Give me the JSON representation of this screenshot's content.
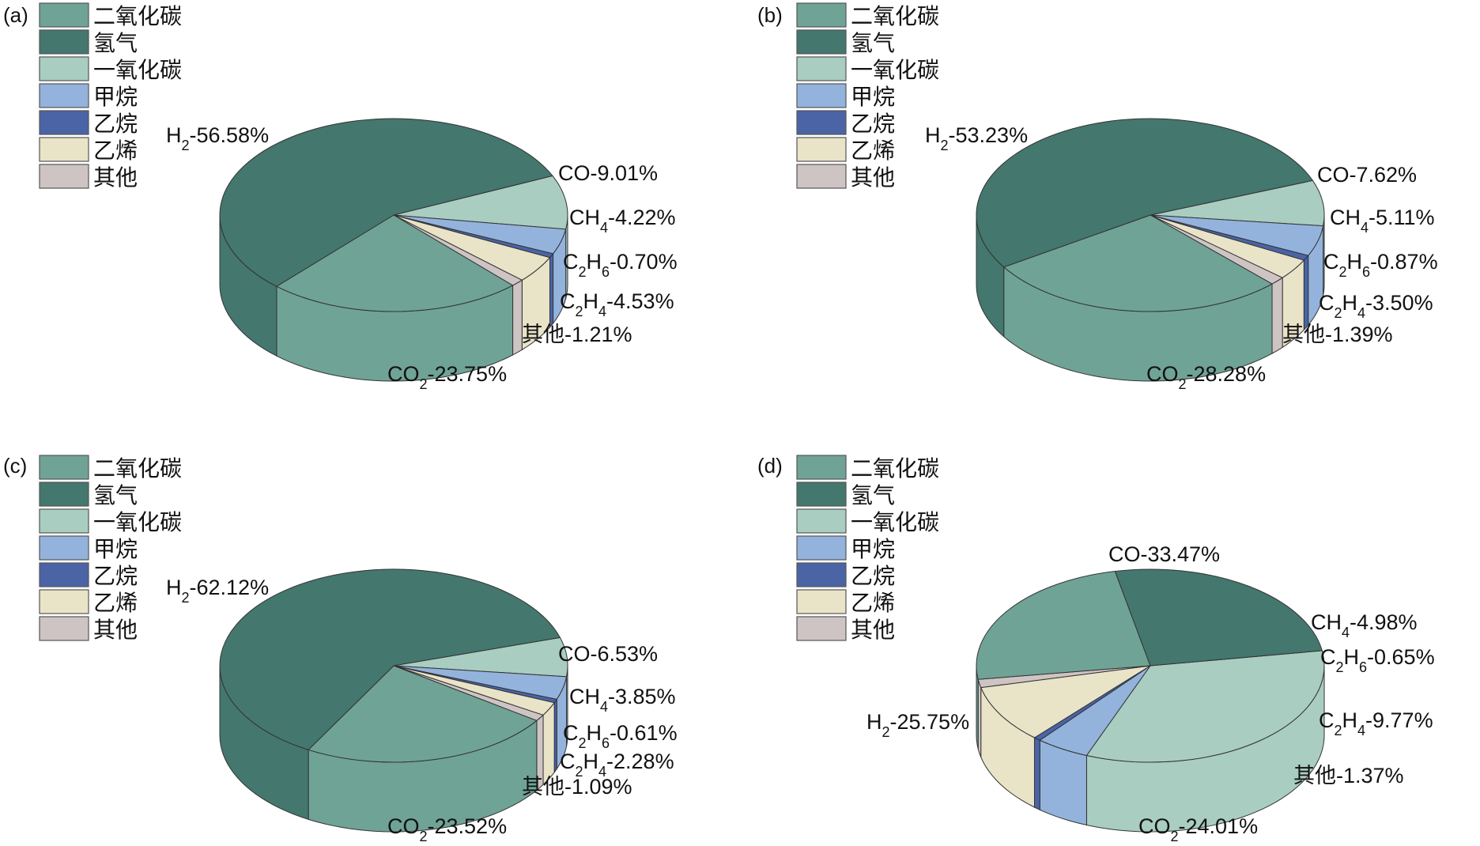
{
  "legend_order": [
    "CO2",
    "H2",
    "CO",
    "CH4",
    "C2H6",
    "C2H4",
    "Other"
  ],
  "components": {
    "CO2": {
      "legend": "二氧化碳",
      "prefix": "CO",
      "sub": "2",
      "rest": "",
      "color": "#6FA396"
    },
    "H2": {
      "legend": "氢气",
      "prefix": "H",
      "sub": "2",
      "rest": "",
      "color": "#44776E"
    },
    "CO": {
      "legend": "一氧化碳",
      "prefix": "CO",
      "sub": "",
      "rest": "",
      "color": "#A9CDC1"
    },
    "CH4": {
      "legend": "甲烷",
      "prefix": "CH",
      "sub": "4",
      "rest": "",
      "color": "#93B3DC"
    },
    "C2H6": {
      "legend": "乙烷",
      "prefix": "C",
      "sub": "2",
      "rest": "H",
      "sub2": "6",
      "color": "#4A64A6"
    },
    "C2H4": {
      "legend": "乙烯",
      "prefix": "C",
      "sub": "2",
      "rest": "H",
      "sub2": "4",
      "color": "#E9E3C8"
    },
    "Other": {
      "legend": "其他",
      "prefix": "其他",
      "sub": "",
      "rest": "",
      "color": "#CFC4C4"
    }
  },
  "chart_data": [
    {
      "type": "pie",
      "panel": "(a)",
      "slices": [
        {
          "key": "CO",
          "value": 9.01,
          "text": "-9.01%"
        },
        {
          "key": "CH4",
          "value": 4.22,
          "text": "-4.22%"
        },
        {
          "key": "C2H6",
          "value": 0.7,
          "text": "-0.70%"
        },
        {
          "key": "C2H4",
          "value": 4.53,
          "text": "-4.53%"
        },
        {
          "key": "Other",
          "value": 1.21,
          "text": "-1.21%"
        },
        {
          "key": "CO2",
          "value": 23.75,
          "text": "-23.75%"
        },
        {
          "key": "H2",
          "value": 56.58,
          "text": "-56.58%"
        }
      ]
    },
    {
      "type": "pie",
      "panel": "(b)",
      "slices": [
        {
          "key": "CO",
          "value": 7.62,
          "text": "-7.62%"
        },
        {
          "key": "CH4",
          "value": 5.11,
          "text": "-5.11%"
        },
        {
          "key": "C2H6",
          "value": 0.87,
          "text": "-0.87%"
        },
        {
          "key": "C2H4",
          "value": 3.5,
          "text": "-3.50%"
        },
        {
          "key": "Other",
          "value": 1.39,
          "text": "-1.39%"
        },
        {
          "key": "CO2",
          "value": 28.28,
          "text": "-28.28%"
        },
        {
          "key": "H2",
          "value": 53.23,
          "text": "-53.23%"
        }
      ]
    },
    {
      "type": "pie",
      "panel": "(c)",
      "slices": [
        {
          "key": "CO",
          "value": 6.53,
          "text": "-6.53%"
        },
        {
          "key": "CH4",
          "value": 3.85,
          "text": "-3.85%"
        },
        {
          "key": "C2H6",
          "value": 0.61,
          "text": "-0.61%"
        },
        {
          "key": "C2H4",
          "value": 2.28,
          "text": "-2.28%"
        },
        {
          "key": "Other",
          "value": 1.09,
          "text": "-1.09%"
        },
        {
          "key": "CO2",
          "value": 23.52,
          "text": "-23.52%"
        },
        {
          "key": "H2",
          "value": 62.12,
          "text": "-62.12%"
        }
      ]
    },
    {
      "type": "pie",
      "panel": "(d)",
      "slices": [
        {
          "key": "CO",
          "value": 33.47,
          "text": "-33.47%"
        },
        {
          "key": "CH4",
          "value": 4.98,
          "text": "-4.98%"
        },
        {
          "key": "C2H6",
          "value": 0.65,
          "text": "-0.65%"
        },
        {
          "key": "C2H4",
          "value": 9.77,
          "text": "-9.77%"
        },
        {
          "key": "Other",
          "value": 1.37,
          "text": "-1.37%"
        },
        {
          "key": "CO2",
          "value": 24.01,
          "text": "-24.01%"
        },
        {
          "key": "H2",
          "value": 25.75,
          "text": "-25.75%"
        }
      ]
    }
  ]
}
